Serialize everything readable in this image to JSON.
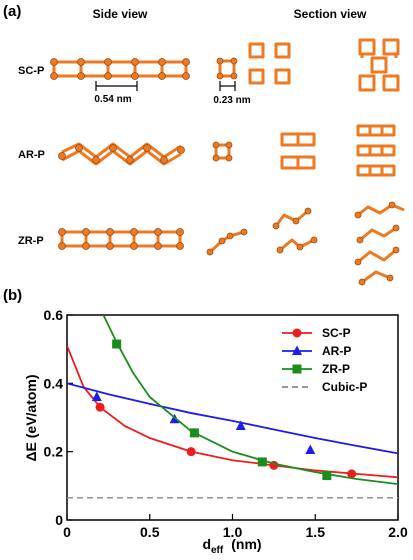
{
  "panel_a": {
    "label": "(a)",
    "side_view": "Side view",
    "section_view": "Section view",
    "rows": [
      "SC-P",
      "AR-P",
      "ZR-P"
    ],
    "dim_side": "0.54 nm",
    "dim_section": "0.23 nm"
  },
  "chart_data": {
    "type": "scatter",
    "panel_label": "(b)",
    "ylabel": "ΔE  (eV/atom)",
    "xlabel": {
      "main": "d",
      "sub": "eff",
      "unit": "(nm)"
    },
    "xlim": [
      0,
      2
    ],
    "ylim": [
      0,
      0.6
    ],
    "xticks": [
      0,
      0.5,
      {
        "value": 1,
        "label": "1.0"
      },
      1.5,
      {
        "value": 2,
        "label": "2.0"
      }
    ],
    "yticks": [
      0,
      0.2,
      0.4,
      0.6
    ],
    "legend": "upper right",
    "series": [
      {
        "name": "SC-P",
        "color": "#ee1c1c",
        "marker": "circle",
        "x": [
          0.2,
          0.75,
          1.25,
          1.72
        ],
        "values": [
          0.33,
          0.2,
          0.16,
          0.135
        ],
        "curve_x": [
          0,
          0.1,
          0.2,
          0.35,
          0.5,
          0.75,
          1,
          1.25,
          1.5,
          1.75,
          2
        ],
        "curve_values": [
          0.51,
          0.39,
          0.33,
          0.275,
          0.24,
          0.2,
          0.175,
          0.16,
          0.145,
          0.135,
          0.125
        ]
      },
      {
        "name": "AR-P",
        "color": "#1c1cee",
        "marker": "triangle",
        "x": [
          0.18,
          0.65,
          1.05,
          1.47
        ],
        "values": [
          0.36,
          0.295,
          0.275,
          0.205
        ],
        "curve_x": [
          0,
          0.25,
          0.5,
          0.75,
          1,
          1.25,
          1.5,
          1.75,
          2
        ],
        "curve_values": [
          0.4,
          0.368,
          0.34,
          0.313,
          0.29,
          0.265,
          0.24,
          0.217,
          0.195
        ]
      },
      {
        "name": "ZR-P",
        "color": "#1c8c1c",
        "marker": "square",
        "x": [
          0.3,
          0.77,
          1.18,
          1.57
        ],
        "values": [
          0.515,
          0.255,
          0.17,
          0.13
        ],
        "curve_x": [
          0.22,
          0.3,
          0.4,
          0.5,
          0.75,
          1,
          1.25,
          1.5,
          1.75,
          2
        ],
        "curve_values": [
          0.6,
          0.52,
          0.43,
          0.36,
          0.26,
          0.2,
          0.165,
          0.14,
          0.12,
          0.105
        ]
      },
      {
        "name": "Cubic-P",
        "color": "#888888",
        "marker": "none",
        "line_style": "dashed",
        "x": [
          0,
          2
        ],
        "values": [
          0.065,
          0.065
        ]
      }
    ]
  }
}
